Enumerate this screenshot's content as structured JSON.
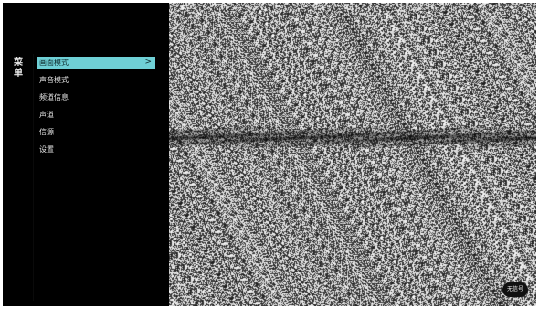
{
  "menu": {
    "title_chars": [
      "菜",
      "单"
    ],
    "items": [
      {
        "label": "画面模式",
        "selected": true
      },
      {
        "label": "声音模式",
        "selected": false
      },
      {
        "label": "频道信息",
        "selected": false
      },
      {
        "label": "声道",
        "selected": false
      },
      {
        "label": "信源",
        "selected": false
      },
      {
        "label": "设置",
        "selected": false
      }
    ],
    "selected_chevron": ">"
  },
  "status": {
    "badge_text": "无信号"
  },
  "colors": {
    "highlight": "#6fd0d6",
    "panel_bg": "#000000",
    "frame_bg": "#000000",
    "noise_base": "#7a7a7a"
  }
}
